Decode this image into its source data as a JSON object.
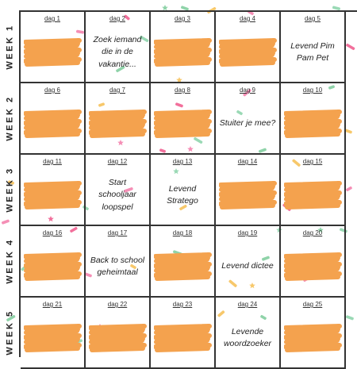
{
  "weeks": [
    "WEEK 1",
    "WEEK 2",
    "WEEK 3",
    "WEEK 4",
    "WEEK 5"
  ],
  "days": [
    {
      "label": "dag 1",
      "activity": "",
      "redacted": true
    },
    {
      "label": "dag 2",
      "activity": "Zoek iemand die in de vakantie...",
      "redacted": false
    },
    {
      "label": "dag 3",
      "activity": "",
      "redacted": true
    },
    {
      "label": "dag 4",
      "activity": "",
      "redacted": true
    },
    {
      "label": "dag 5",
      "activity": "Levend Pim Pam Pet",
      "redacted": false
    },
    {
      "label": "dag 6",
      "activity": "",
      "redacted": true
    },
    {
      "label": "dag 7",
      "activity": "",
      "redacted": true
    },
    {
      "label": "dag 8",
      "activity": "",
      "redacted": true
    },
    {
      "label": "dag 9",
      "activity": "Stuiter je mee?",
      "redacted": false
    },
    {
      "label": "dag 10",
      "activity": "",
      "redacted": true
    },
    {
      "label": "dag 11",
      "activity": "",
      "redacted": true
    },
    {
      "label": "dag 12",
      "activity": "Start schooljaar loopspel",
      "redacted": false
    },
    {
      "label": "dag 13",
      "activity": "Levend Stratego",
      "redacted": false
    },
    {
      "label": "dag 14",
      "activity": "",
      "redacted": true
    },
    {
      "label": "dag 15",
      "activity": "",
      "redacted": true
    },
    {
      "label": "dag 16",
      "activity": "",
      "redacted": true
    },
    {
      "label": "dag 17",
      "activity": "Back to school geheimtaal",
      "redacted": false
    },
    {
      "label": "dag 18",
      "activity": "",
      "redacted": true
    },
    {
      "label": "dag 19",
      "activity": "Levend dictee",
      "redacted": false
    },
    {
      "label": "dag 20",
      "activity": "",
      "redacted": true
    },
    {
      "label": "dag 21",
      "activity": "",
      "redacted": true
    },
    {
      "label": "dag 22",
      "activity": "",
      "redacted": true
    },
    {
      "label": "dag 23",
      "activity": "",
      "redacted": true
    },
    {
      "label": "dag 24",
      "activity": "Levende woordzoeker",
      "redacted": false
    },
    {
      "label": "dag 25",
      "activity": "",
      "redacted": true
    }
  ],
  "colors": {
    "redaction": "#f4a24e",
    "confetti": [
      "#f2709c",
      "#8fd3a9",
      "#f7c86b",
      "#f58fb6",
      "#9ad9b5"
    ]
  }
}
